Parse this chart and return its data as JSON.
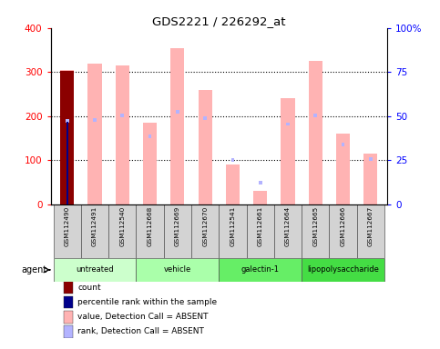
{
  "title": "GDS2221 / 226292_at",
  "samples": [
    "GSM112490",
    "GSM112491",
    "GSM112540",
    "GSM112668",
    "GSM112669",
    "GSM112670",
    "GSM112541",
    "GSM112661",
    "GSM112664",
    "GSM112665",
    "GSM112666",
    "GSM112667"
  ],
  "groups": [
    {
      "label": "untreated",
      "indices": [
        0,
        1,
        2
      ],
      "color": "#ccffcc"
    },
    {
      "label": "vehicle",
      "indices": [
        3,
        4,
        5
      ],
      "color": "#aaffaa"
    },
    {
      "label": "galectin-1",
      "indices": [
        6,
        7,
        8
      ],
      "color": "#66ee66"
    },
    {
      "label": "lipopolysaccharide",
      "indices": [
        9,
        10,
        11
      ],
      "color": "#44dd44"
    }
  ],
  "value_bars": [
    305,
    320,
    315,
    185,
    355,
    260,
    90,
    30,
    240,
    325,
    160,
    115
  ],
  "rank_bars": [
    190,
    192,
    202,
    155,
    210,
    195,
    100,
    50,
    182,
    202,
    135,
    102
  ],
  "count_bar_index": 0,
  "count_bar_value": 302,
  "count_bar_color": "#8B0000",
  "percentile_bar_index": 0,
  "percentile_bar_value": 188,
  "percentile_bar_color": "#00008B",
  "value_bar_color": "#ffb3b3",
  "rank_bar_color": "#b3b3ff",
  "ylim_left": [
    0,
    400
  ],
  "ylim_right": [
    0,
    100
  ],
  "yticks_left": [
    0,
    100,
    200,
    300,
    400
  ],
  "yticks_right": [
    0,
    25,
    50,
    75,
    100
  ],
  "yticklabels_right": [
    "0",
    "25",
    "50",
    "75",
    "100%"
  ],
  "bg_color": "#ffffff",
  "bar_width": 0.5
}
